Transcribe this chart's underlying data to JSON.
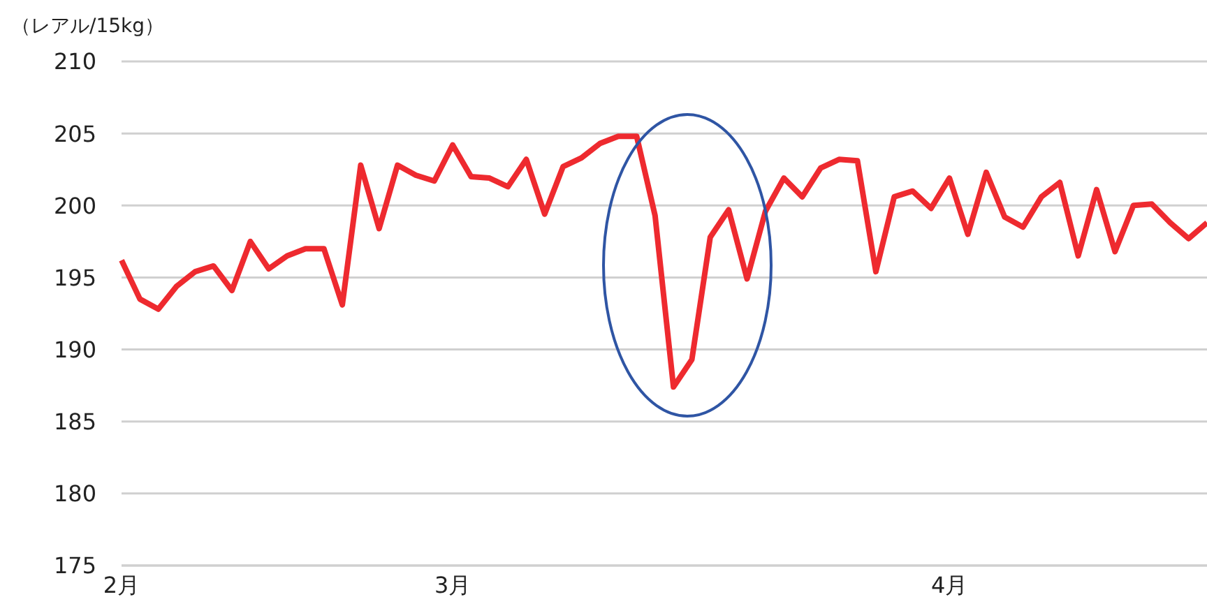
{
  "chart_data": {
    "type": "line",
    "ylabel": "（レアル/15kg）",
    "categories": [
      "2月",
      null,
      null,
      null,
      null,
      null,
      null,
      null,
      null,
      null,
      null,
      null,
      null,
      null,
      null,
      null,
      null,
      null,
      "3月",
      null,
      null,
      null,
      null,
      null,
      null,
      null,
      null,
      null,
      null,
      null,
      null,
      null,
      null,
      null,
      null,
      null,
      null,
      null,
      null,
      null,
      null,
      null,
      null,
      null,
      null,
      "4月",
      null,
      null,
      null,
      null,
      null,
      null,
      null,
      null,
      null,
      null,
      null,
      null,
      null,
      null
    ],
    "series": [
      {
        "color": "#ee2a2f",
        "values": [
          196.2,
          193.5,
          192.8,
          194.4,
          195.4,
          195.8,
          194.1,
          197.5,
          195.6,
          196.5,
          197.0,
          197.0,
          193.1,
          202.8,
          198.4,
          202.8,
          202.1,
          201.7,
          204.2,
          202.0,
          201.9,
          201.3,
          203.2,
          199.4,
          202.7,
          203.3,
          204.3,
          204.8,
          204.8,
          199.3,
          187.4,
          189.3,
          197.8,
          199.7,
          194.9,
          199.6,
          201.9,
          200.6,
          202.6,
          203.2,
          203.1,
          195.4,
          200.6,
          201.0,
          199.8,
          201.9,
          198.0,
          202.3,
          199.2,
          198.5,
          200.6,
          201.6,
          196.5,
          201.1,
          196.8,
          200.0,
          200.1,
          198.8,
          197.7,
          198.8
        ]
      }
    ],
    "ylim": [
      175,
      210
    ],
    "yticks": [
      175,
      180,
      185,
      190,
      195,
      200,
      205,
      210
    ],
    "grid": "y",
    "legend": false,
    "marker": "none",
    "line_style": "solid"
  }
}
